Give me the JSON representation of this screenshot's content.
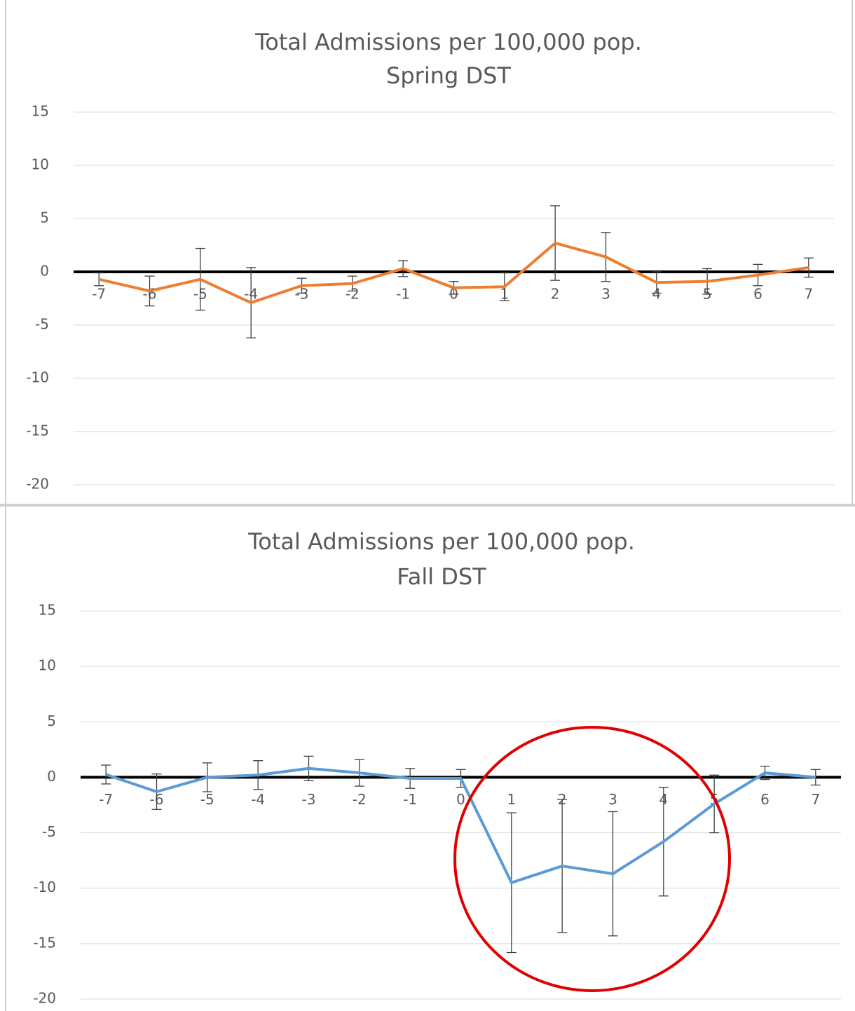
{
  "chart_data": [
    {
      "type": "line",
      "title": "Total Admissions per 100,000 pop.",
      "subtitle": "Spring DST",
      "categories": [
        "-7",
        "-6",
        "-5",
        "-4",
        "-3",
        "-2",
        "-1",
        "0",
        "1",
        "2",
        "3",
        "4",
        "5",
        "6",
        "7"
      ],
      "series": [
        {
          "color": "#ed7d31",
          "values": [
            -0.7,
            -1.8,
            -0.7,
            -2.9,
            -1.3,
            -1.1,
            0.3,
            -1.5,
            -1.4,
            2.7,
            1.4,
            -1.0,
            -0.9,
            -0.3,
            0.4
          ],
          "errors": [
            0.6,
            1.4,
            2.9,
            3.3,
            0.7,
            0.7,
            0.75,
            0.6,
            1.3,
            3.5,
            2.3,
            1.0,
            1.2,
            1.0,
            0.9
          ]
        }
      ],
      "ylim": [
        -20,
        15
      ],
      "yticks": [
        -20,
        -15,
        -10,
        -5,
        0,
        5,
        10,
        15
      ],
      "grid": true
    },
    {
      "type": "line",
      "title": "Total Admissions per 100,000 pop.",
      "subtitle": "Fall DST",
      "categories": [
        "-7",
        "-6",
        "-5",
        "-4",
        "-3",
        "-2",
        "-1",
        "0",
        "1",
        "2",
        "3",
        "4",
        "5",
        "6",
        "7"
      ],
      "series": [
        {
          "color": "#5b9bd5",
          "values": [
            0.25,
            -1.3,
            0,
            0.2,
            0.8,
            0.4,
            -0.1,
            -0.1,
            -9.5,
            -8.0,
            -8.7,
            -5.8,
            -2.4,
            0.4,
            0
          ],
          "errors": [
            0.85,
            1.6,
            1.3,
            1.3,
            1.1,
            1.2,
            0.9,
            0.8,
            6.3,
            6.0,
            5.6,
            4.9,
            2.6,
            0.6,
            0.7
          ]
        }
      ],
      "ylim": [
        -20,
        15
      ],
      "yticks": [
        -20,
        -15,
        -10,
        -5,
        0,
        5,
        10,
        15
      ],
      "grid": true
    }
  ]
}
